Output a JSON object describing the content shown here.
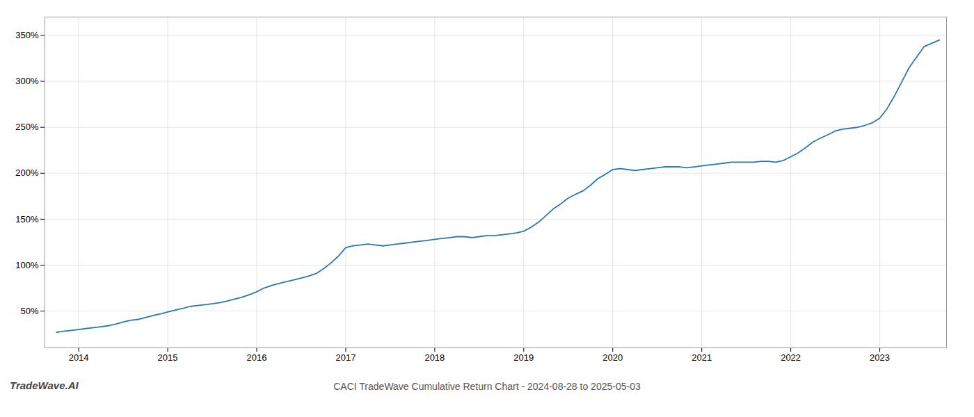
{
  "chart_data": {
    "type": "line",
    "title": "CACI TradeWave Cumulative Return Chart - 2024-08-28 to 2025-05-03",
    "annotations": [
      "TradeWave.AI"
    ],
    "color": "#2878b8",
    "grid": true,
    "x": [
      2013.75,
      2013.83,
      2013.92,
      2014.0,
      2014.08,
      2014.17,
      2014.25,
      2014.33,
      2014.42,
      2014.5,
      2014.58,
      2014.67,
      2014.75,
      2014.83,
      2014.92,
      2015.0,
      2015.08,
      2015.17,
      2015.25,
      2015.33,
      2015.42,
      2015.5,
      2015.58,
      2015.67,
      2015.75,
      2015.83,
      2015.92,
      2016.0,
      2016.08,
      2016.17,
      2016.25,
      2016.33,
      2016.42,
      2016.5,
      2016.58,
      2016.67,
      2016.75,
      2016.83,
      2016.92,
      2017.0,
      2017.08,
      2017.17,
      2017.25,
      2017.33,
      2017.42,
      2017.5,
      2017.58,
      2017.67,
      2017.75,
      2017.83,
      2017.92,
      2018.0,
      2018.08,
      2018.17,
      2018.25,
      2018.33,
      2018.42,
      2018.5,
      2018.58,
      2018.67,
      2018.75,
      2018.83,
      2018.92,
      2019.0,
      2019.08,
      2019.17,
      2019.25,
      2019.33,
      2019.42,
      2019.5,
      2019.58,
      2019.67,
      2019.75,
      2019.83,
      2019.92,
      2020.0,
      2020.08,
      2020.17,
      2020.25,
      2020.33,
      2020.42,
      2020.5,
      2020.58,
      2020.67,
      2020.75,
      2020.83,
      2020.92,
      2021.0,
      2021.08,
      2021.17,
      2021.25,
      2021.33,
      2021.42,
      2021.5,
      2021.58,
      2021.67,
      2021.75,
      2021.83,
      2021.92,
      2022.0,
      2022.08,
      2022.17,
      2022.25,
      2022.33,
      2022.42,
      2022.5,
      2022.58,
      2022.67,
      2022.75,
      2022.83,
      2022.92,
      2023.0,
      2023.08,
      2023.17,
      2023.25,
      2023.33,
      2023.5,
      2023.67
    ],
    "values": [
      27,
      28,
      29,
      30,
      31,
      32,
      33,
      34,
      36,
      38,
      40,
      41,
      43,
      45,
      47,
      49,
      51,
      53,
      55,
      56,
      57,
      58,
      59,
      61,
      63,
      65,
      68,
      71,
      75,
      78,
      80,
      82,
      84,
      86,
      88,
      91,
      96,
      102,
      110,
      119,
      121,
      122,
      123,
      122,
      121,
      122,
      123,
      124,
      125,
      126,
      127,
      128,
      129,
      130,
      131,
      131,
      130,
      131,
      132,
      132,
      133,
      134,
      135,
      137,
      141,
      147,
      154,
      161,
      167,
      173,
      177,
      181,
      187,
      194,
      199,
      204,
      205,
      204,
      203,
      204,
      205,
      206,
      207,
      207,
      207,
      206,
      207,
      208,
      209,
      210,
      211,
      212,
      212,
      212,
      212,
      213,
      213,
      212,
      214,
      218,
      222,
      228,
      234,
      238,
      242,
      246,
      248,
      249,
      250,
      252,
      255,
      260,
      270,
      285,
      300,
      315,
      338,
      345
    ],
    "xlim": [
      2013.62,
      2023.75
    ],
    "xticks": [
      2014,
      2015,
      2016,
      2017,
      2018,
      2019,
      2020,
      2021,
      2022,
      2023
    ],
    "ylim": [
      10,
      370
    ],
    "yticks": [
      {
        "value": 50,
        "label": "50%"
      },
      {
        "value": 100,
        "label": "100%"
      },
      {
        "value": 150,
        "label": "150%"
      },
      {
        "value": 200,
        "label": "200%"
      },
      {
        "value": 250,
        "label": "250%"
      },
      {
        "value": 300,
        "label": "300%"
      },
      {
        "value": 350,
        "label": "350%"
      }
    ]
  }
}
